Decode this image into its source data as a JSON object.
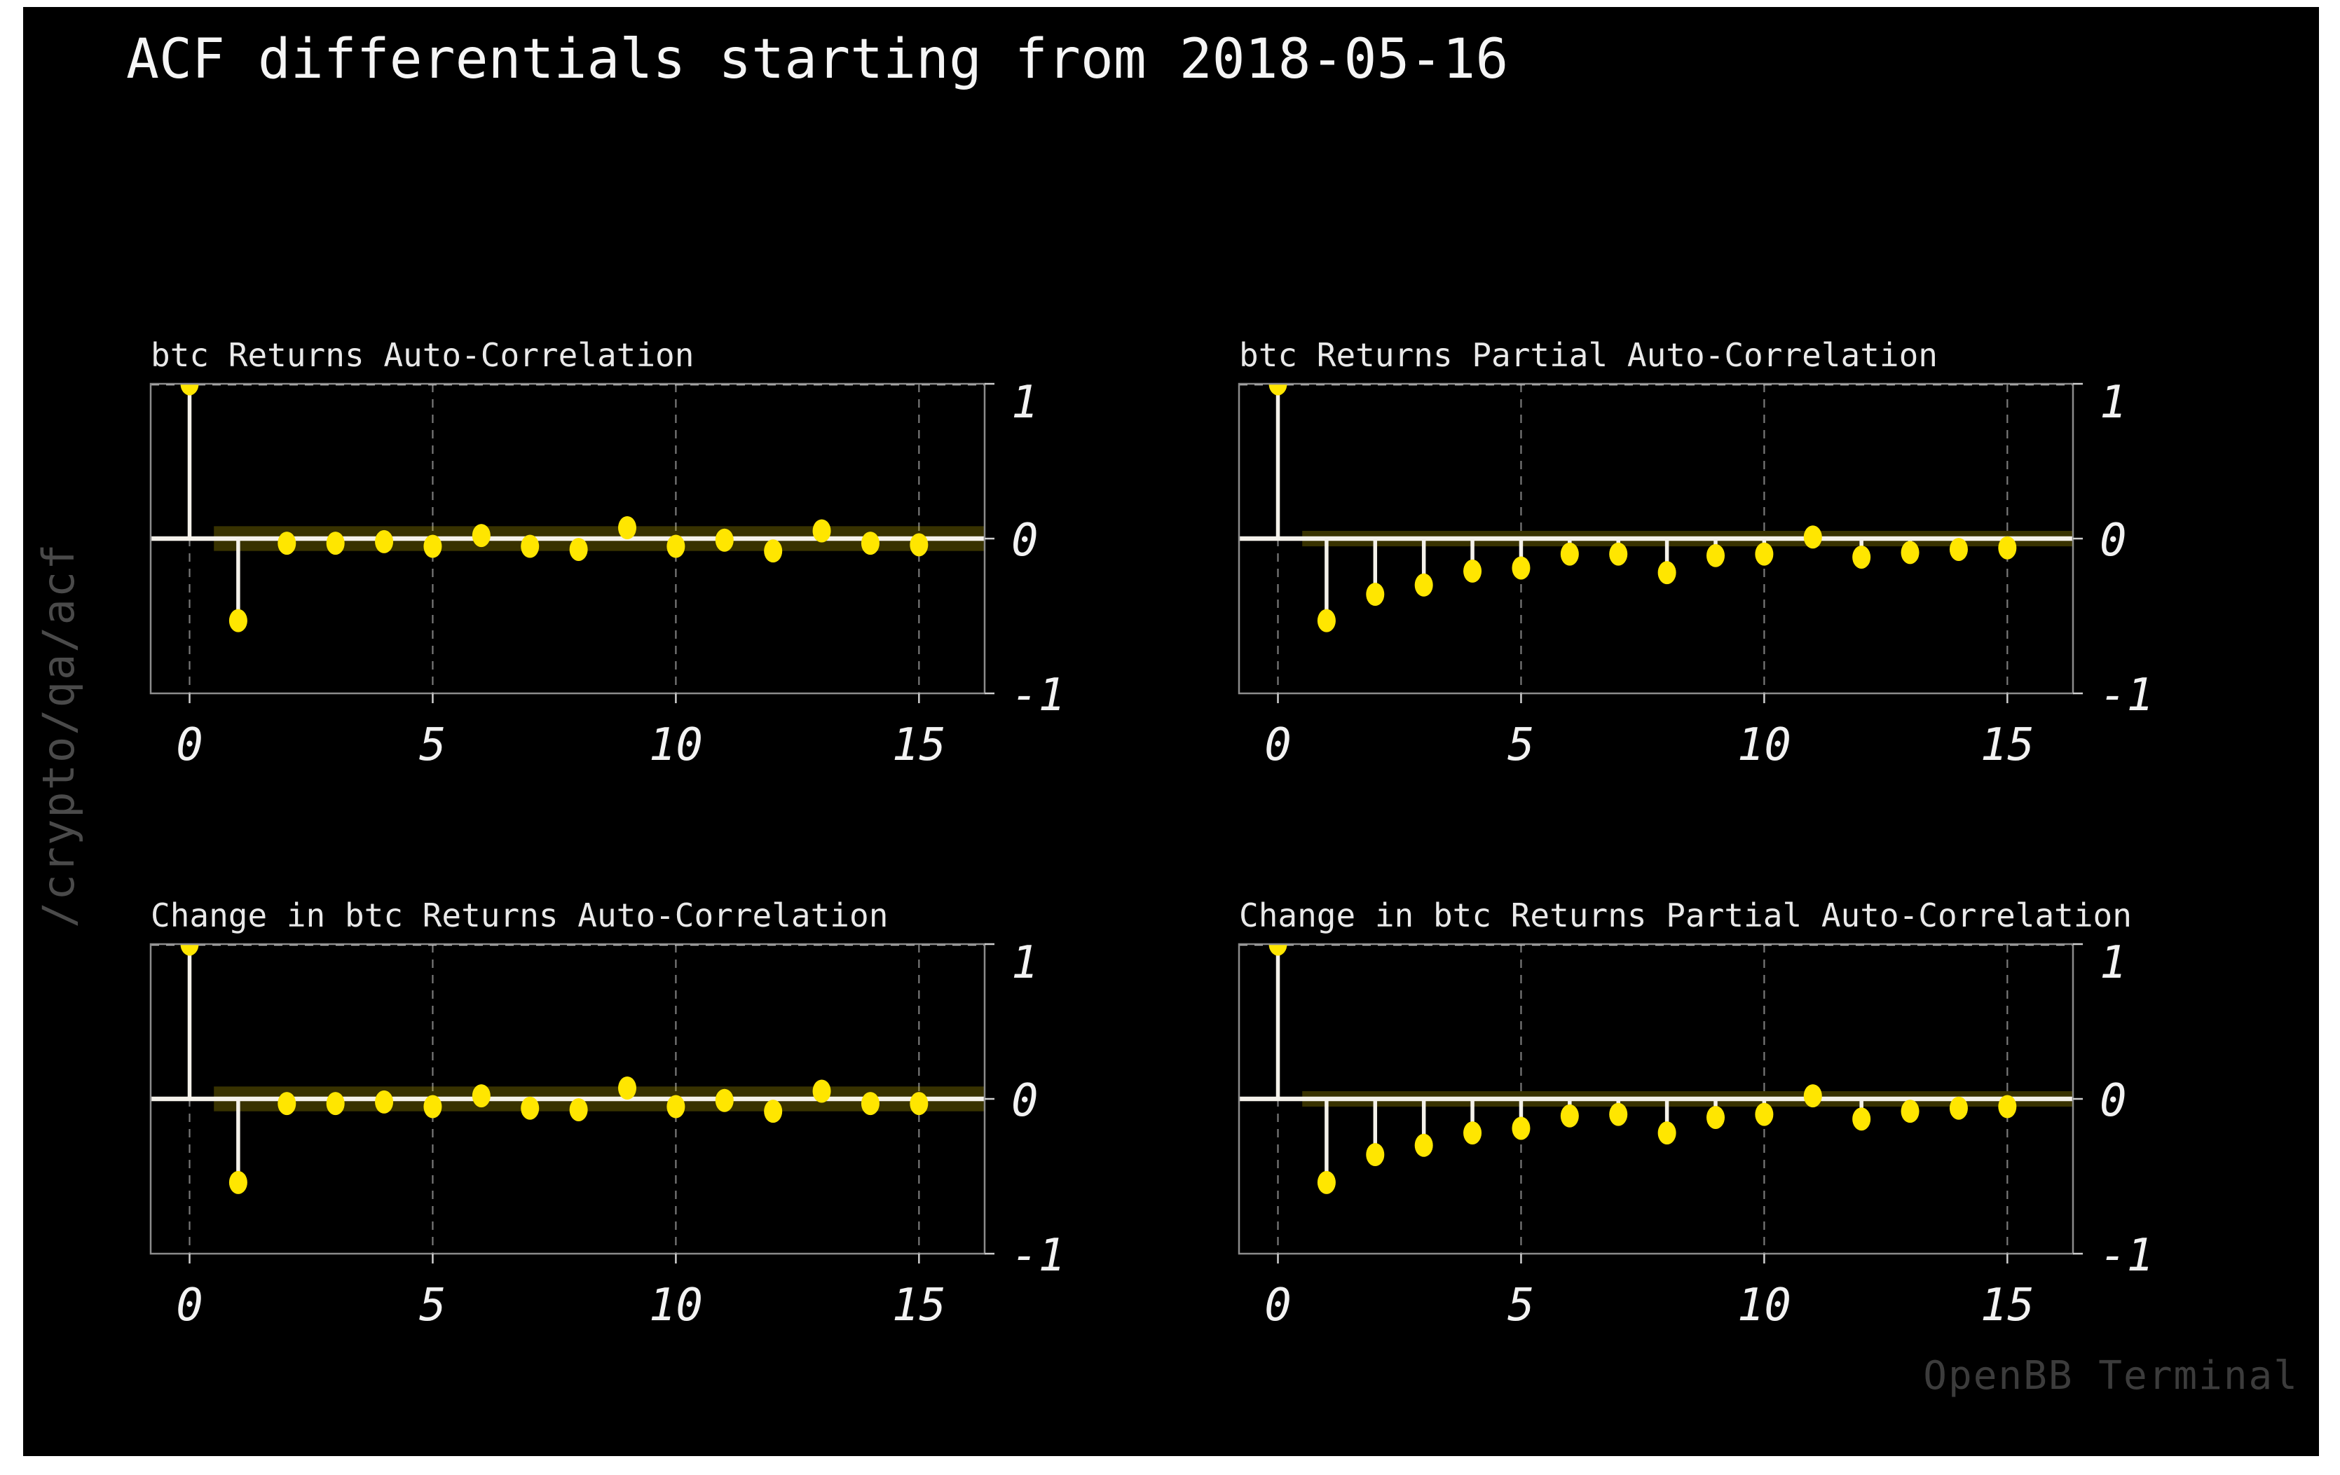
{
  "window": {
    "title": "ACF differentials starting from 2018-05-16",
    "path_watermark": "/crypto/qa/acf",
    "brand_watermark": "OpenBB Terminal"
  },
  "colors": {
    "page_margin": "#ffffff",
    "background": "#000000",
    "title_text": "#f5f5f5",
    "subtitle_text": "#e9e9e9",
    "tick_text": "#f2f2f2",
    "marker": "#ffe600",
    "stem": "#f4f1ea",
    "zero_line": "#f4f1ea",
    "frame": "#8c8c8c",
    "grid": "#8f8f8f",
    "top_gridline": "#dcdcdc",
    "tick_stub": "#cfcfcf",
    "conf_band": "rgba(255,228,0,0.22)",
    "path_text": "#4a4a4a",
    "brand_text": "#3c3c3c"
  },
  "chart_data": [
    {
      "type": "stem",
      "title": "btc Returns Auto-Correlation",
      "lags": [
        0,
        1,
        2,
        3,
        4,
        5,
        6,
        7,
        8,
        9,
        10,
        11,
        12,
        13,
        14,
        15
      ],
      "values": [
        1.0,
        -0.53,
        -0.03,
        -0.03,
        -0.02,
        -0.05,
        0.02,
        -0.05,
        -0.07,
        0.07,
        -0.05,
        -0.01,
        -0.08,
        0.05,
        -0.03,
        -0.04
      ],
      "conf_band_halfwidth": 0.08,
      "conf_band_start_lag": 0.5,
      "xlim": [
        -0.8,
        16.35
      ],
      "ylim": [
        -1,
        1
      ],
      "xticks": [
        0,
        5,
        10,
        15
      ],
      "yticks": [
        1,
        0,
        -1
      ],
      "grid": "dashed-vertical-at-xticks-plus-top"
    },
    {
      "type": "stem",
      "title": "btc Returns Partial Auto-Correlation",
      "lags": [
        0,
        1,
        2,
        3,
        4,
        5,
        6,
        7,
        8,
        9,
        10,
        11,
        12,
        13,
        14,
        15
      ],
      "values": [
        1.0,
        -0.53,
        -0.36,
        -0.3,
        -0.21,
        -0.19,
        -0.1,
        -0.1,
        -0.22,
        -0.11,
        -0.1,
        0.01,
        -0.12,
        -0.09,
        -0.07,
        -0.06
      ],
      "conf_band_halfwidth": 0.05,
      "conf_band_start_lag": 0.5,
      "xlim": [
        -0.8,
        16.35
      ],
      "ylim": [
        -1,
        1
      ],
      "xticks": [
        0,
        5,
        10,
        15
      ],
      "yticks": [
        1,
        0,
        -1
      ],
      "grid": "dashed-vertical-at-xticks-plus-top"
    },
    {
      "type": "stem",
      "title": "Change in btc Returns Auto-Correlation",
      "lags": [
        0,
        1,
        2,
        3,
        4,
        5,
        6,
        7,
        8,
        9,
        10,
        11,
        12,
        13,
        14,
        15
      ],
      "values": [
        1.0,
        -0.54,
        -0.03,
        -0.03,
        -0.02,
        -0.05,
        0.02,
        -0.06,
        -0.07,
        0.07,
        -0.05,
        -0.01,
        -0.08,
        0.05,
        -0.03,
        -0.03
      ],
      "conf_band_halfwidth": 0.08,
      "conf_band_start_lag": 0.5,
      "xlim": [
        -0.8,
        16.35
      ],
      "ylim": [
        -1,
        1
      ],
      "xticks": [
        0,
        5,
        10,
        15
      ],
      "yticks": [
        1,
        0,
        -1
      ],
      "grid": "dashed-vertical-at-xticks-plus-top"
    },
    {
      "type": "stem",
      "title": "Change in btc Returns Partial Auto-Correlation",
      "lags": [
        0,
        1,
        2,
        3,
        4,
        5,
        6,
        7,
        8,
        9,
        10,
        11,
        12,
        13,
        14,
        15
      ],
      "values": [
        1.0,
        -0.54,
        -0.36,
        -0.3,
        -0.22,
        -0.19,
        -0.11,
        -0.1,
        -0.22,
        -0.12,
        -0.1,
        0.02,
        -0.13,
        -0.08,
        -0.06,
        -0.05
      ],
      "conf_band_halfwidth": 0.05,
      "conf_band_start_lag": 0.5,
      "xlim": [
        -0.8,
        16.35
      ],
      "ylim": [
        -1,
        1
      ],
      "xticks": [
        0,
        5,
        10,
        15
      ],
      "yticks": [
        1,
        0,
        -1
      ],
      "grid": "dashed-vertical-at-xticks-plus-top"
    }
  ]
}
